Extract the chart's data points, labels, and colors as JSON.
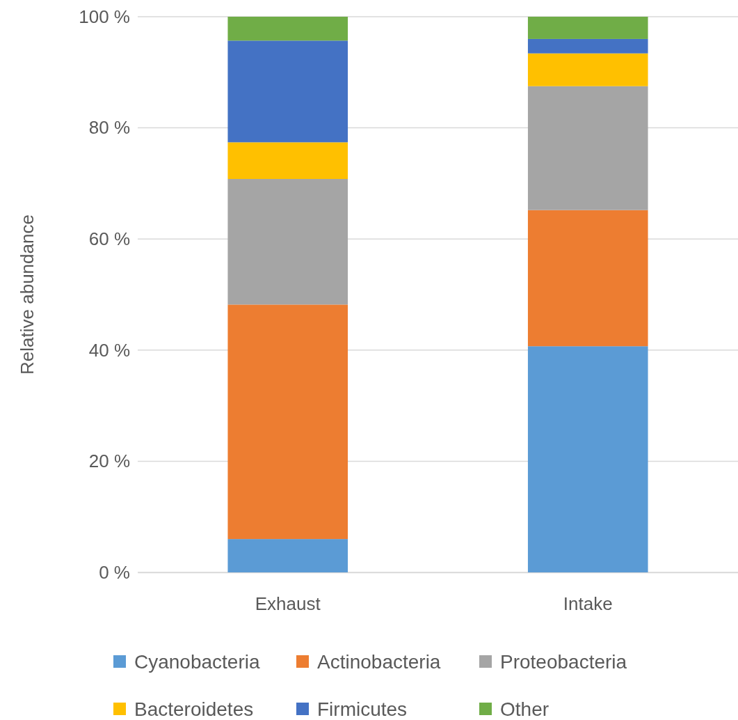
{
  "chart_data": {
    "type": "bar",
    "stacked": true,
    "ylabel": "Relative abundance",
    "categories": [
      "Exhaust",
      "Intake"
    ],
    "series": [
      {
        "name": "Cyanobacteria",
        "color": "#5b9bd5",
        "values": [
          6.0,
          40.7
        ]
      },
      {
        "name": "Actinobacteria",
        "color": "#ed7d31",
        "values": [
          42.2,
          24.5
        ]
      },
      {
        "name": "Proteobacteria",
        "color": "#a5a5a5",
        "values": [
          22.6,
          22.3
        ]
      },
      {
        "name": "Bacteroidetes",
        "color": "#ffc000",
        "values": [
          6.6,
          5.9
        ]
      },
      {
        "name": "Firmicutes",
        "color": "#4472c4",
        "values": [
          18.3,
          2.6
        ]
      },
      {
        "name": "Other",
        "color": "#70ad47",
        "values": [
          4.3,
          4.0
        ]
      }
    ],
    "ylim": [
      0,
      100
    ],
    "yticks": [
      {
        "value": 0,
        "label": "0 %"
      },
      {
        "value": 20,
        "label": "20 %"
      },
      {
        "value": 40,
        "label": "40 %"
      },
      {
        "value": 60,
        "label": "60 %"
      },
      {
        "value": 80,
        "label": "80 %"
      },
      {
        "value": 100,
        "label": "100 %"
      }
    ],
    "grid": "y",
    "legend": "bottom"
  }
}
